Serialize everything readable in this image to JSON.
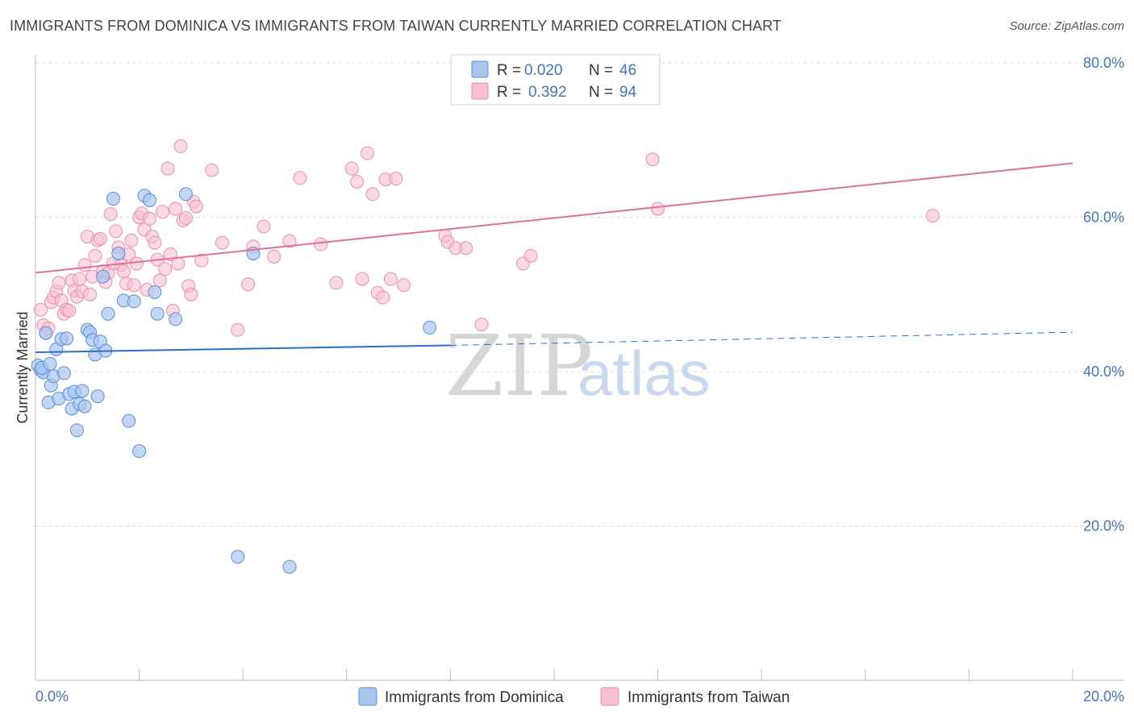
{
  "header": {
    "title": "IMMIGRANTS FROM DOMINICA VS IMMIGRANTS FROM TAIWAN CURRENTLY MARRIED CORRELATION CHART",
    "source": "Source: ZipAtlas.com"
  },
  "watermark": {
    "part1": "ZIP",
    "part2": "atlas"
  },
  "legend_top": {
    "rows": [
      {
        "r_label": "R =",
        "r_value": "0.020",
        "n_label": "N =",
        "n_value": "46"
      },
      {
        "r_label": "R =",
        "r_value": "0.392",
        "n_label": "N =",
        "n_value": "94"
      }
    ]
  },
  "legend_bottom": {
    "items": [
      {
        "label": "Immigrants from Dominica"
      },
      {
        "label": "Immigrants from Taiwan"
      }
    ]
  },
  "colors": {
    "blue_fill": "#a9c6ef",
    "blue_stroke": "#5b8fd6",
    "blue_line": "#2a6fcc",
    "pink_fill": "#f7bfd0",
    "pink_stroke": "#e890ad",
    "pink_line": "#e0709a",
    "grid": "#dddddd",
    "tick_text": "#4472c4"
  },
  "chart_data": {
    "type": "scatter",
    "title": "IMMIGRANTS FROM DOMINICA VS IMMIGRANTS FROM TAIWAN CURRENTLY MARRIED CORRELATION CHART",
    "xlabel": "",
    "ylabel": "Currently Married",
    "xlim": [
      0,
      20
    ],
    "ylim": [
      0,
      80
    ],
    "x_tick_labels": [
      "0.0%",
      "20.0%"
    ],
    "y_ticks": [
      20,
      40,
      60,
      80
    ],
    "y_tick_labels": [
      "20.0%",
      "40.0%",
      "60.0%",
      "80.0%"
    ],
    "grid": true,
    "series": [
      {
        "name": "Immigrants from Dominica",
        "color": "blue",
        "R": 0.02,
        "N": 46,
        "trend": {
          "x0": 0,
          "y0": 42.5,
          "x1": 8.0,
          "y1": 43.4,
          "dash_x1": 20,
          "dash_y1": 45.1
        },
        "points": [
          [
            0.05,
            40.8
          ],
          [
            0.1,
            40.2
          ],
          [
            0.15,
            39.9
          ],
          [
            0.2,
            45.0
          ],
          [
            0.25,
            36.0
          ],
          [
            0.3,
            38.2
          ],
          [
            0.35,
            39.4
          ],
          [
            0.4,
            42.9
          ],
          [
            0.45,
            36.5
          ],
          [
            0.5,
            44.2
          ],
          [
            0.55,
            39.8
          ],
          [
            0.6,
            44.3
          ],
          [
            0.65,
            37.1
          ],
          [
            0.7,
            35.2
          ],
          [
            0.75,
            37.4
          ],
          [
            0.8,
            32.4
          ],
          [
            0.85,
            35.8
          ],
          [
            0.9,
            37.5
          ],
          [
            0.95,
            35.5
          ],
          [
            1.0,
            45.4
          ],
          [
            1.05,
            45.1
          ],
          [
            1.1,
            44.1
          ],
          [
            1.15,
            42.2
          ],
          [
            1.2,
            36.8
          ],
          [
            1.25,
            43.9
          ],
          [
            1.3,
            52.3
          ],
          [
            1.35,
            42.7
          ],
          [
            1.4,
            47.5
          ],
          [
            1.5,
            62.4
          ],
          [
            1.6,
            55.3
          ],
          [
            1.7,
            49.2
          ],
          [
            1.8,
            33.6
          ],
          [
            1.9,
            49.1
          ],
          [
            2.0,
            29.7
          ],
          [
            2.1,
            62.8
          ],
          [
            2.3,
            50.3
          ],
          [
            2.2,
            62.2
          ],
          [
            2.35,
            47.5
          ],
          [
            2.7,
            46.8
          ],
          [
            2.9,
            63.0
          ],
          [
            3.9,
            16.0
          ],
          [
            4.2,
            55.3
          ],
          [
            4.9,
            14.7
          ],
          [
            7.6,
            45.7
          ],
          [
            0.12,
            40.5
          ],
          [
            0.28,
            41.0
          ]
        ]
      },
      {
        "name": "Immigrants from Taiwan",
        "color": "pink",
        "R": 0.392,
        "N": 94,
        "trend": {
          "x0": 0,
          "y0": 52.8,
          "x1": 20,
          "y1": 67.0
        },
        "points": [
          [
            0.1,
            48.0
          ],
          [
            0.15,
            46.0
          ],
          [
            0.2,
            45.0
          ],
          [
            0.25,
            45.6
          ],
          [
            0.3,
            49.0
          ],
          [
            0.35,
            49.6
          ],
          [
            0.4,
            50.4
          ],
          [
            0.45,
            51.5
          ],
          [
            0.5,
            49.2
          ],
          [
            0.55,
            47.5
          ],
          [
            0.6,
            48.0
          ],
          [
            0.65,
            47.9
          ],
          [
            0.7,
            51.8
          ],
          [
            0.75,
            50.5
          ],
          [
            0.8,
            49.7
          ],
          [
            0.85,
            52.0
          ],
          [
            0.9,
            50.4
          ],
          [
            0.95,
            53.8
          ],
          [
            1.0,
            57.5
          ],
          [
            1.05,
            50.0
          ],
          [
            1.1,
            52.3
          ],
          [
            1.15,
            55.0
          ],
          [
            1.2,
            57.0
          ],
          [
            1.25,
            57.2
          ],
          [
            1.3,
            53.0
          ],
          [
            1.35,
            51.6
          ],
          [
            1.4,
            52.8
          ],
          [
            1.45,
            60.4
          ],
          [
            1.5,
            54.0
          ],
          [
            1.55,
            58.2
          ],
          [
            1.6,
            56.1
          ],
          [
            1.65,
            53.8
          ],
          [
            1.7,
            53.0
          ],
          [
            1.75,
            51.4
          ],
          [
            1.8,
            55.2
          ],
          [
            1.85,
            57.0
          ],
          [
            1.9,
            51.2
          ],
          [
            1.95,
            54.0
          ],
          [
            2.0,
            60.0
          ],
          [
            2.05,
            60.5
          ],
          [
            2.1,
            58.4
          ],
          [
            2.15,
            50.6
          ],
          [
            2.2,
            59.8
          ],
          [
            2.25,
            57.5
          ],
          [
            2.3,
            56.7
          ],
          [
            2.35,
            54.5
          ],
          [
            2.4,
            51.8
          ],
          [
            2.45,
            60.7
          ],
          [
            2.5,
            53.3
          ],
          [
            2.55,
            66.3
          ],
          [
            2.6,
            55.2
          ],
          [
            2.65,
            47.9
          ],
          [
            2.7,
            61.1
          ],
          [
            2.75,
            54.0
          ],
          [
            2.8,
            69.2
          ],
          [
            2.85,
            59.6
          ],
          [
            2.9,
            59.9
          ],
          [
            2.95,
            51.1
          ],
          [
            3.0,
            50.0
          ],
          [
            3.05,
            62.0
          ],
          [
            3.1,
            61.4
          ],
          [
            3.2,
            54.4
          ],
          [
            3.4,
            66.1
          ],
          [
            3.6,
            56.7
          ],
          [
            3.9,
            45.4
          ],
          [
            4.1,
            51.3
          ],
          [
            4.2,
            56.2
          ],
          [
            4.4,
            58.8
          ],
          [
            4.6,
            54.9
          ],
          [
            4.9,
            56.9
          ],
          [
            5.1,
            65.1
          ],
          [
            5.5,
            56.5
          ],
          [
            5.8,
            51.5
          ],
          [
            6.1,
            66.3
          ],
          [
            6.2,
            64.6
          ],
          [
            6.3,
            52.0
          ],
          [
            6.4,
            68.3
          ],
          [
            6.5,
            63.0
          ],
          [
            6.6,
            50.2
          ],
          [
            6.7,
            49.6
          ],
          [
            6.75,
            64.9
          ],
          [
            6.85,
            52.0
          ],
          [
            6.95,
            65.0
          ],
          [
            7.1,
            51.2
          ],
          [
            7.9,
            57.6
          ],
          [
            7.95,
            56.8
          ],
          [
            8.1,
            56.0
          ],
          [
            8.3,
            56.0
          ],
          [
            8.6,
            46.1
          ],
          [
            9.4,
            54.0
          ],
          [
            9.55,
            55.0
          ],
          [
            11.9,
            67.5
          ],
          [
            12.0,
            61.1
          ],
          [
            17.3,
            60.2
          ]
        ]
      }
    ]
  }
}
